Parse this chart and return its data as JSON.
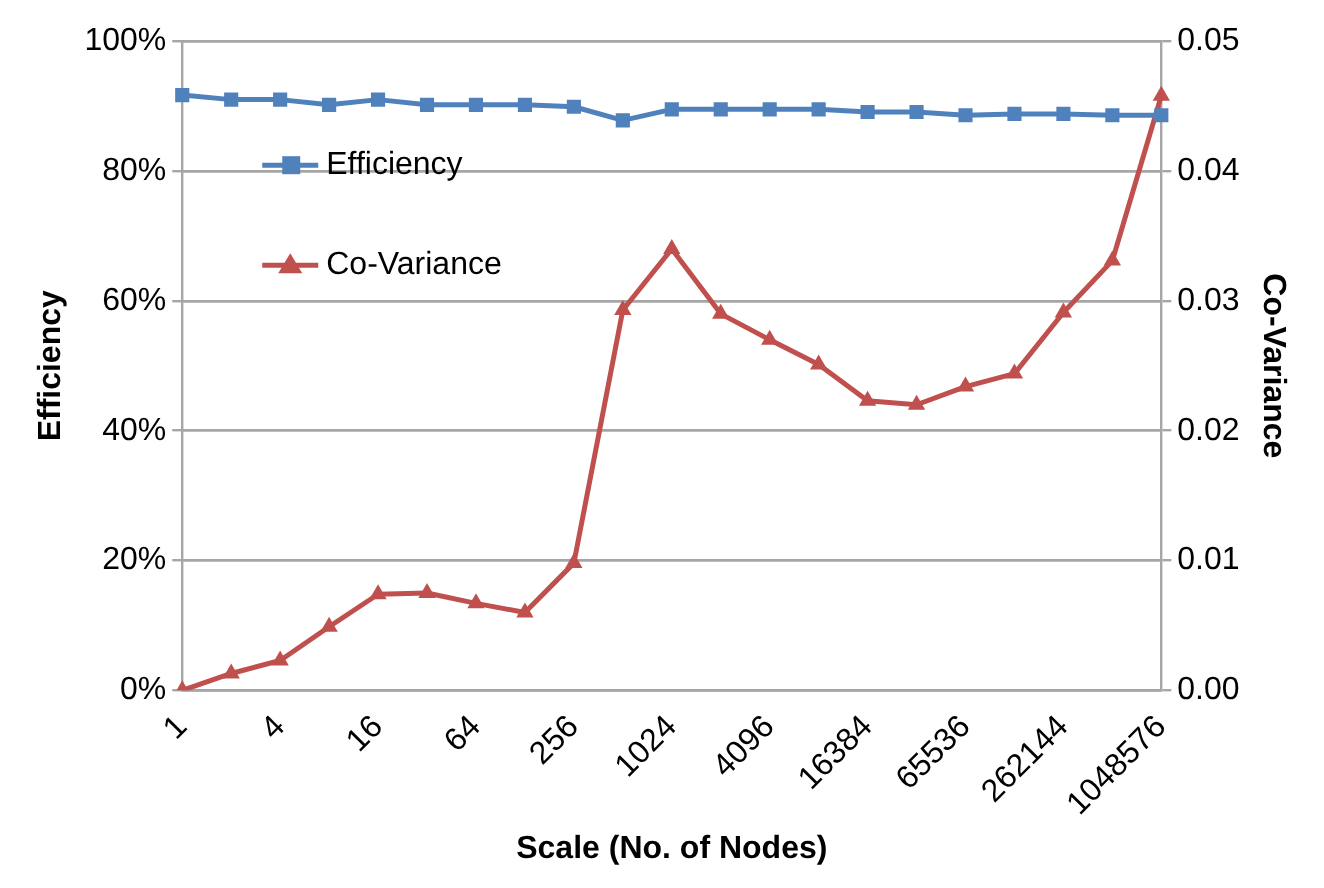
{
  "chart_data": {
    "type": "line",
    "xlabel": "Scale (No. of Nodes)",
    "ylabel": "Efficiency",
    "y2label": "Co-Variance",
    "categories": [
      "1",
      null,
      "4",
      null,
      "16",
      null,
      "64",
      null,
      "256",
      null,
      "1024",
      null,
      "4096",
      null,
      "16384",
      null,
      "65536",
      null,
      "262144",
      null,
      "1048576"
    ],
    "series": [
      {
        "name": "Efficiency",
        "color": "#4f81bd",
        "marker": "square",
        "values": [
          91.7,
          91.0,
          91.0,
          90.2,
          91.0,
          90.2,
          90.2,
          90.2,
          89.9,
          87.8,
          89.5,
          89.5,
          89.5,
          89.5,
          89.1,
          89.1,
          88.6,
          88.8,
          88.8,
          88.6,
          88.6
        ]
      },
      {
        "name": "Co-Variance",
        "color": "#c0504d",
        "marker": "triangle",
        "axis": "y2",
        "values": [
          0.0,
          0.0013,
          0.0023,
          0.0049,
          0.0074,
          0.0075,
          0.0067,
          0.006,
          0.0098,
          0.0293,
          0.034,
          0.029,
          0.027,
          0.0251,
          0.0223,
          0.022,
          0.0234,
          0.0244,
          0.0291,
          0.0331,
          0.0458
        ]
      }
    ],
    "ylim": [
      0,
      100
    ],
    "yticks": [
      {
        "value": 0,
        "label": "0%"
      },
      {
        "value": 20,
        "label": "20%"
      },
      {
        "value": 40,
        "label": "40%"
      },
      {
        "value": 60,
        "label": "60%"
      },
      {
        "value": 80,
        "label": "80%"
      },
      {
        "value": 100,
        "label": "100%"
      }
    ],
    "y2lim": [
      0,
      0.05
    ],
    "y2ticks": [
      {
        "value": 0,
        "label": "0.00"
      },
      {
        "value": 0.01,
        "label": "0.01"
      },
      {
        "value": 0.02,
        "label": "0.02"
      },
      {
        "value": 0.03,
        "label": "0.03"
      },
      {
        "value": 0.04,
        "label": "0.04"
      },
      {
        "value": 0.05,
        "label": "0.05"
      }
    ],
    "grid": "y",
    "legend": "top left",
    "line_style": "solid"
  }
}
